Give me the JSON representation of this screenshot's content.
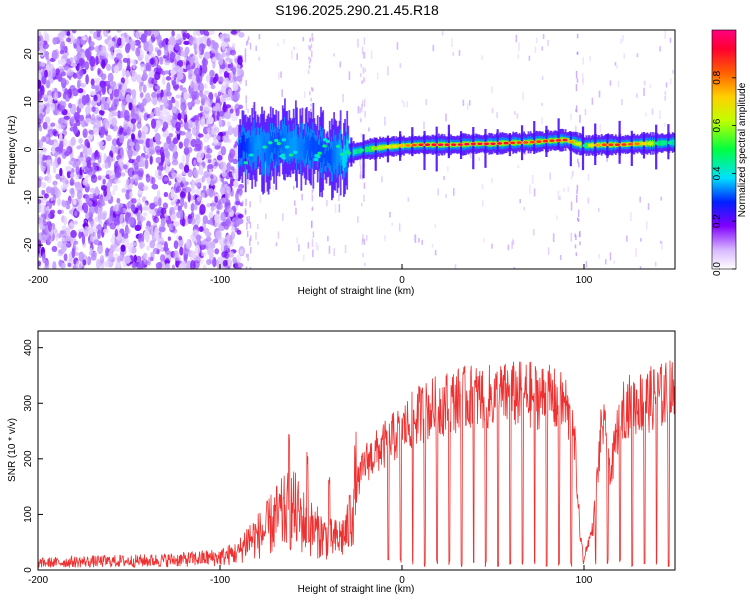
{
  "chart_data": [
    {
      "type": "heatmap",
      "title": "S196.2025.290.21.45.R18",
      "xlabel": "Height of straight line (km)",
      "ylabel": "Frequency (Hz)",
      "xlim": [
        -200,
        150
      ],
      "ylim": [
        -25,
        25
      ],
      "x_ticks": [
        -200,
        -100,
        0,
        100
      ],
      "x_tick_labels": [
        "-200",
        "-100",
        "0",
        "100"
      ],
      "y_ticks": [
        20,
        10,
        0,
        -10,
        -20
      ],
      "y_tick_labels": [
        "20",
        "10",
        "0",
        "-10",
        "-20"
      ],
      "colorbar": {
        "label": "Normalized spectral amplitude",
        "range": [
          0.0,
          1.0
        ],
        "ticks": [
          0.0,
          0.2,
          0.4,
          0.6,
          0.8
        ],
        "tick_labels": [
          "0.0",
          "0.2",
          "0.4",
          "0.6",
          "0.8"
        ],
        "colormap": "rainbow"
      },
      "ridge": {
        "x_km": [
          -90,
          -80,
          -70,
          -60,
          -50,
          -40,
          -30,
          -20,
          -10,
          0,
          10,
          20,
          30,
          40,
          50,
          60,
          70,
          80,
          90,
          100,
          110,
          120,
          130,
          140,
          150
        ],
        "freq_hz": [
          0.5,
          0.3,
          0.6,
          0.8,
          0.2,
          -1.5,
          -0.8,
          0.0,
          0.5,
          0.8,
          1.0,
          1.0,
          1.0,
          1.2,
          1.2,
          1.4,
          1.5,
          1.8,
          2.0,
          0.8,
          1.0,
          1.0,
          1.2,
          1.3,
          1.5
        ],
        "amplitude": [
          0.25,
          0.35,
          0.3,
          0.35,
          0.3,
          0.3,
          0.4,
          0.5,
          0.6,
          0.75,
          0.9,
          0.95,
          0.95,
          0.95,
          0.95,
          0.9,
          0.85,
          0.9,
          0.9,
          0.5,
          0.85,
          0.9,
          0.8,
          0.5,
          0.4
        ]
      }
    },
    {
      "type": "line",
      "xlabel": "Height of straight line (km)",
      "ylabel": "SNR (10 * v/v)",
      "xlim": [
        -200,
        150
      ],
      "ylim": [
        0,
        430
      ],
      "x_ticks": [
        -200,
        -100,
        0,
        100
      ],
      "x_tick_labels": [
        "-200",
        "-100",
        "0",
        "100"
      ],
      "y_ticks": [
        0,
        100,
        200,
        300,
        400
      ],
      "y_tick_labels": [
        "0",
        "100",
        "200",
        "300",
        "400"
      ],
      "series": [
        {
          "name": "SNR",
          "color": "#ee3030",
          "x": [
            -200,
            -180,
            -160,
            -140,
            -120,
            -100,
            -90,
            -85,
            -80,
            -75,
            -70,
            -65,
            -60,
            -55,
            -50,
            -45,
            -40,
            -35,
            -30,
            -25,
            -20,
            -15,
            -10,
            -5,
            0,
            10,
            20,
            30,
            40,
            50,
            60,
            70,
            80,
            90,
            95,
            98,
            100,
            105,
            110,
            115,
            120,
            130,
            140,
            150
          ],
          "y": [
            12,
            14,
            15,
            16,
            18,
            22,
            30,
            55,
            60,
            70,
            90,
            100,
            110,
            90,
            75,
            65,
            55,
            55,
            70,
            155,
            200,
            215,
            230,
            245,
            260,
            290,
            305,
            315,
            320,
            320,
            325,
            325,
            320,
            305,
            230,
            60,
            25,
            80,
            280,
            180,
            300,
            310,
            320,
            330
          ]
        }
      ],
      "spikes": [
        {
          "x": -62,
          "y": 248
        },
        {
          "x": -52,
          "y": 215
        },
        {
          "x": -40,
          "y": 168
        }
      ]
    }
  ]
}
